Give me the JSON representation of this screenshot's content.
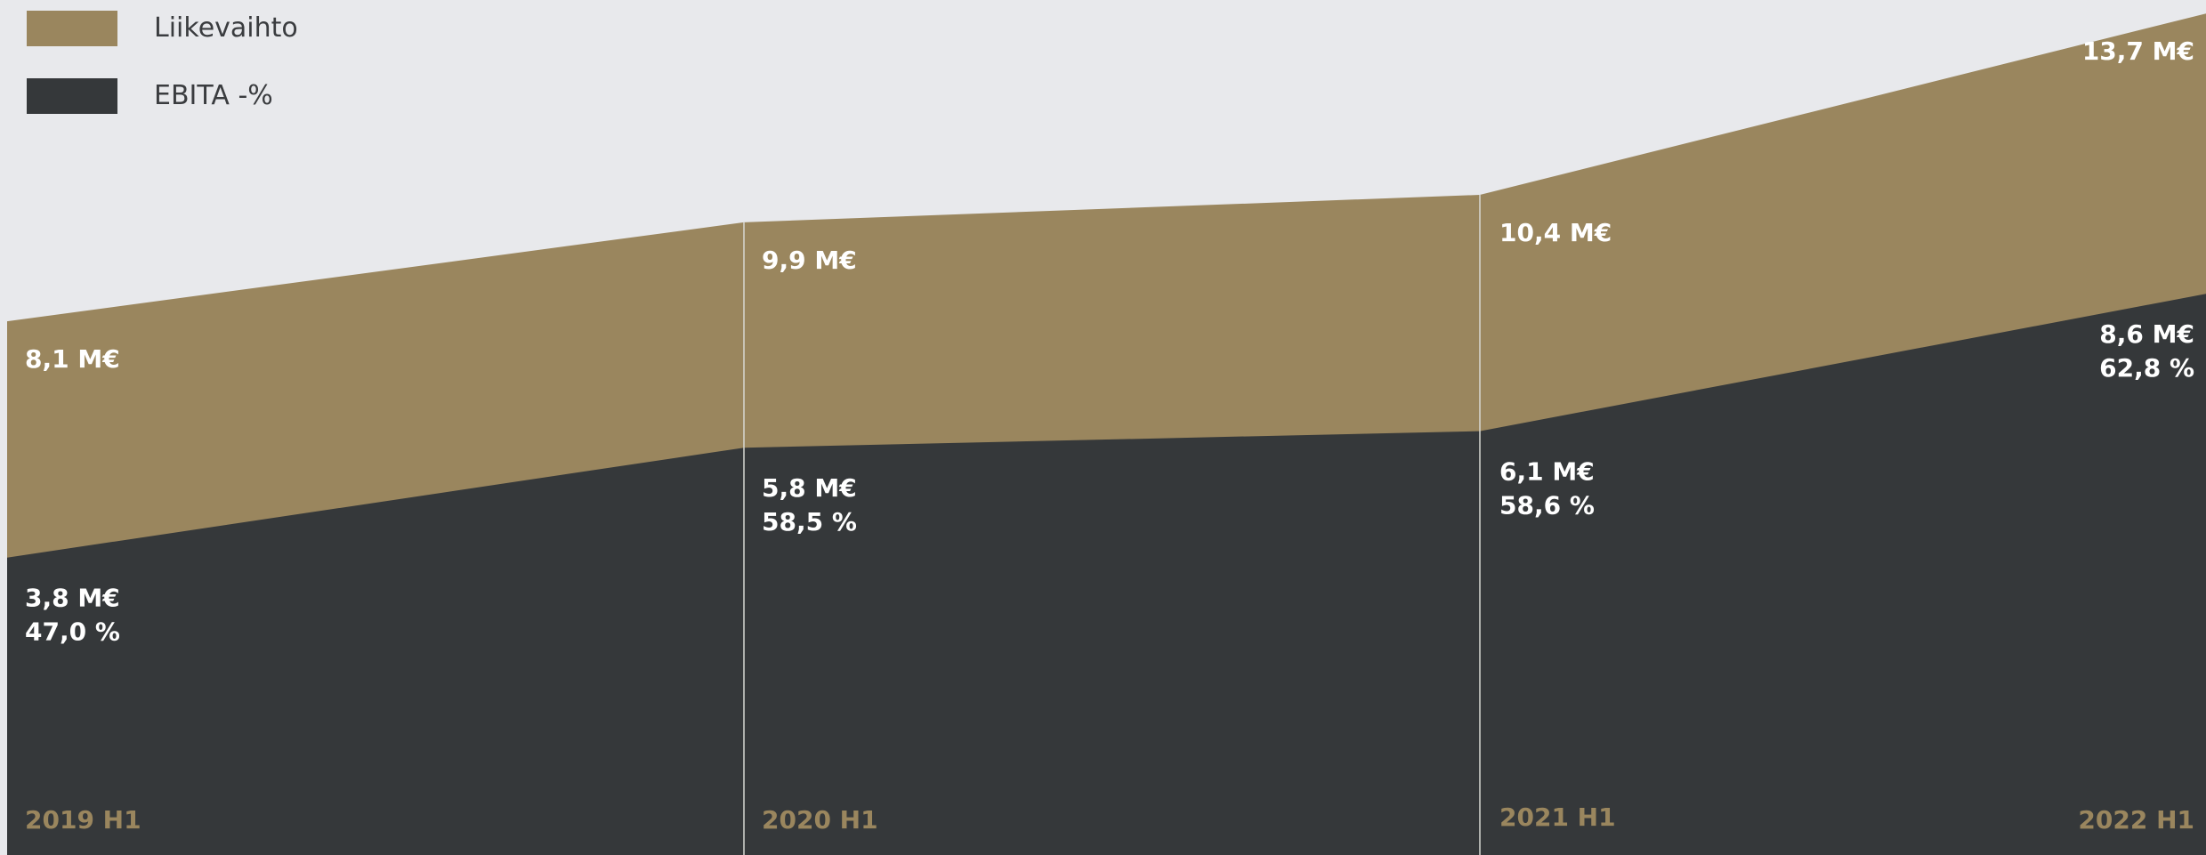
{
  "chart_data": {
    "type": "area",
    "categories": [
      "2019 H1",
      "2020 H1",
      "2021 H1",
      "2022 H1"
    ],
    "series": [
      {
        "name": "Liikevaihto",
        "values": [
          8.1,
          9.9,
          10.4,
          13.7
        ],
        "labels": [
          "8,1 M€",
          "9,9 M€",
          "10,4 M€",
          "13,7 M€"
        ],
        "color": "#9a865e"
      },
      {
        "name": "EBITA -%",
        "values": [
          3.8,
          5.8,
          6.1,
          8.6
        ],
        "labels": [
          "3,8 M€",
          "5,8 M€",
          "6,1 M€",
          "8,6 M€"
        ],
        "percent_labels": [
          "47,0 %",
          "58,5 %",
          "58,6 %",
          "62,8 %"
        ],
        "color": "#35383a"
      }
    ],
    "ylim": [
      0,
      14
    ],
    "legend_position": "top-left",
    "grid": false,
    "background_color": "#e8e9ec",
    "category_label_color": "#9a865e",
    "value_label_color": "#ffffff",
    "divider_color": "#d7d7d2"
  }
}
